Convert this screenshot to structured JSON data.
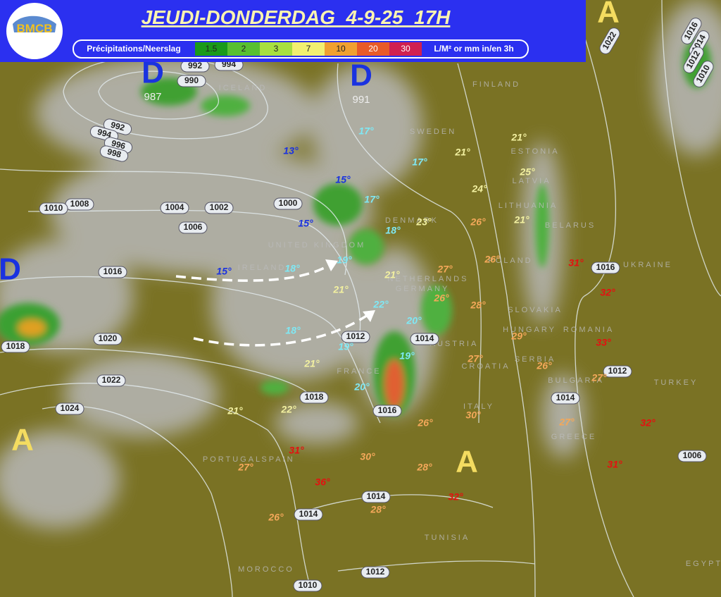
{
  "header": {
    "logo": "BMCB",
    "title": "JEUDI-DONDERDAG  4-9-25  17H"
  },
  "legend": {
    "label": "Précipitations/Neerslag",
    "steps": [
      "1.5",
      "2",
      "3",
      "7",
      "10",
      "20",
      "30"
    ],
    "unit": "L/M² or mm in/en 3h"
  },
  "pressure_centers": [
    {
      "label": "D",
      "value": "987"
    },
    {
      "label": "D",
      "value": "991"
    },
    {
      "label": "D"
    },
    {
      "label": "A"
    },
    {
      "label": "A"
    },
    {
      "label": "A"
    }
  ],
  "isobar_labels": [
    "992",
    "994",
    "990",
    "992",
    "994",
    "996",
    "998",
    "1008",
    "1010",
    "1004",
    "1002",
    "1006",
    "1000",
    "1016",
    "1018",
    "1020",
    "1022",
    "1024",
    "1012",
    "1014",
    "1018",
    "1016",
    "1014",
    "1014",
    "1012",
    "1010",
    "1016",
    "1012",
    "1014",
    "1006",
    "1022",
    "1016",
    "1014",
    "1012",
    "1010"
  ],
  "temperature_groups": [
    {
      "color": "#1a32e0",
      "labels": [
        "13°",
        "15°",
        "15°",
        "15°"
      ]
    },
    {
      "color": "#7fe8f4",
      "labels": [
        "17°",
        "17°",
        "17°",
        "18°",
        "18°",
        "19°",
        "18°",
        "22°",
        "20°",
        "19°",
        "19°",
        "20°"
      ]
    },
    {
      "color": "#f2f0a0",
      "labels": [
        "21°",
        "21°",
        "25°",
        "24°",
        "23°",
        "21°",
        "21°",
        "21°",
        "21°",
        "21°",
        "22°"
      ]
    },
    {
      "color": "#f4a85a",
      "labels": [
        "26°",
        "27°",
        "26°",
        "26°",
        "28°",
        "29°",
        "27°",
        "26°",
        "27°",
        "30°",
        "26°",
        "27°",
        "27°",
        "30°",
        "28°",
        "28°",
        "26°"
      ]
    },
    {
      "color": "#e41010",
      "labels": [
        "31°",
        "32°",
        "33°",
        "32°",
        "31°",
        "31°",
        "36°",
        "32°"
      ]
    }
  ],
  "countries": [
    "ICELAND",
    "FINLAND",
    "SWEDEN",
    "ESTONIA",
    "LATVIA",
    "LITHUANIA",
    "BELARUS",
    "DENMARK",
    "UNITED KINGDOM",
    "IRELAND",
    "NETHERLANDS",
    "GERMANY",
    "POLAND",
    "SLOVAKIA",
    "HUNGARY",
    "ROMANIA",
    "UKRAINE",
    "AUSTRIA",
    "CROATIA",
    "SERBIA",
    "BULGARIA",
    "FRANCE",
    "ITALY",
    "PORTUGAL",
    "SPAIN",
    "GREECE",
    "TURKEY",
    "TUNISIA",
    "MOROCCO",
    "EGYPT"
  ]
}
